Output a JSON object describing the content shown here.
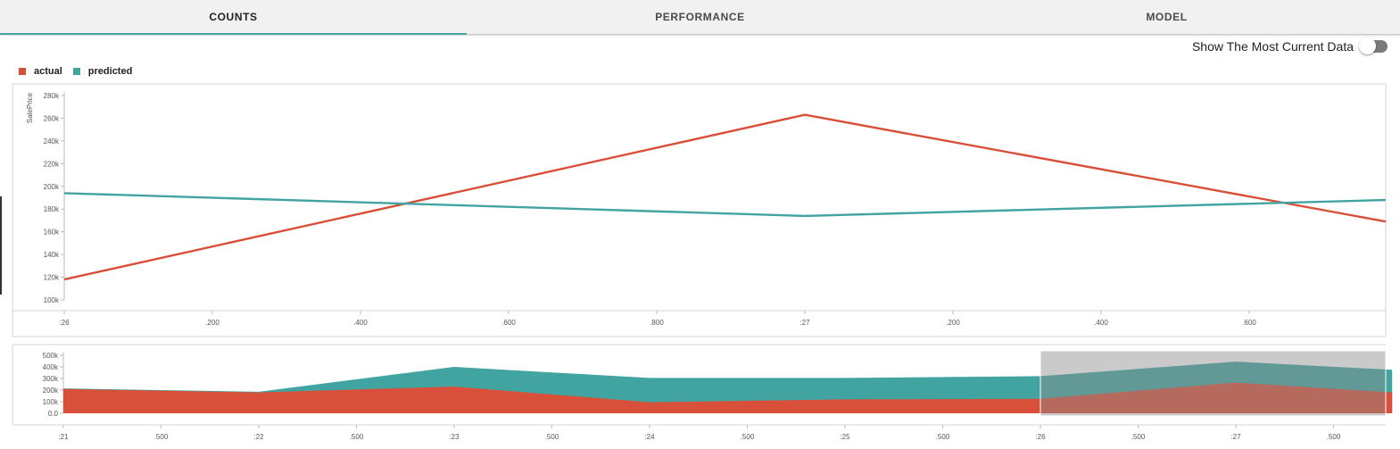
{
  "tabs": [
    {
      "label": "COUNTS",
      "active": true
    },
    {
      "label": "PERFORMANCE",
      "active": false
    },
    {
      "label": "MODEL",
      "active": false
    }
  ],
  "toggle": {
    "label": "Show The Most Current Data",
    "on": false
  },
  "colors": {
    "actual": "#d9503a",
    "predicted": "#42a4a1",
    "accent": "#42a4a1",
    "brush": "#c8c8c8"
  },
  "chart_data": [
    {
      "type": "line",
      "ylabel": "SalePrice",
      "ylim": [
        100000,
        280000
      ],
      "yticks": [
        "100k",
        "120k",
        "140k",
        "160k",
        "180k",
        "200k",
        "220k",
        "240k",
        "260k",
        "280k"
      ],
      "xticks": [
        ":26",
        ".200",
        ".400",
        ".600",
        ".800",
        ":27",
        ".200",
        ".400",
        ".600"
      ],
      "x": [
        0,
        1,
        2
      ],
      "series": [
        {
          "name": "actual",
          "values": [
            118000,
            263000,
            169000
          ]
        },
        {
          "name": "predicted",
          "values": [
            194000,
            174000,
            188000
          ]
        }
      ],
      "legend": "top-left"
    },
    {
      "type": "area",
      "ylim": [
        0,
        500000
      ],
      "yticks": [
        "0.0",
        "100k",
        "200k",
        "300k",
        "400k",
        "500k"
      ],
      "xticks": [
        ":21",
        ".500",
        ":22",
        ".500",
        ":23",
        ".500",
        ":24",
        ".500",
        ":25",
        ".500",
        ":26",
        ".500",
        ":27",
        ".500"
      ],
      "x": [
        21,
        22,
        23,
        24,
        25,
        26,
        27,
        27.8
      ],
      "series": [
        {
          "name": "actual",
          "values": [
            210000,
            180000,
            230000,
            95000,
            120000,
            125000,
            265000,
            180000
          ]
        },
        {
          "name": "predicted",
          "values": [
            215000,
            185000,
            400000,
            305000,
            305000,
            320000,
            445000,
            375000
          ]
        }
      ],
      "brush_range": [
        26,
        27.8
      ]
    }
  ]
}
